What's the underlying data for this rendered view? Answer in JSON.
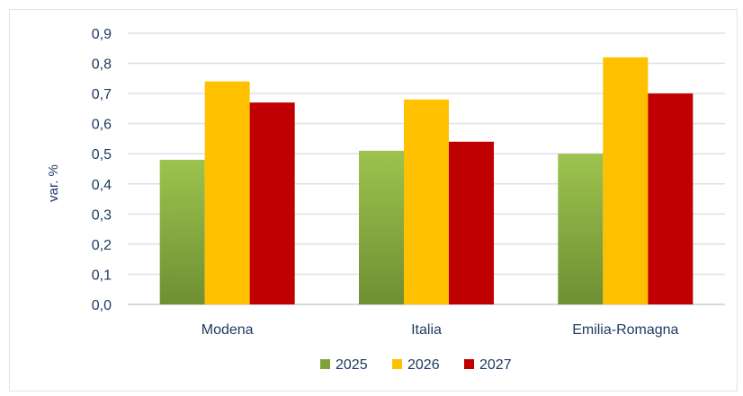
{
  "chart_data": {
    "type": "bar",
    "title": "",
    "xlabel": "",
    "ylabel": "var. %",
    "ylim": [
      0,
      0.9
    ],
    "y_ticks": [
      "0,0",
      "0,1",
      "0,2",
      "0,3",
      "0,4",
      "0,5",
      "0,6",
      "0,7",
      "0,8",
      "0,9"
    ],
    "grid": true,
    "legend_position": "bottom",
    "categories": [
      "Modena",
      "Italia",
      "Emilia-Romagna"
    ],
    "series": [
      {
        "name": "2025",
        "values": [
          0.48,
          0.51,
          0.5
        ],
        "color": "#7ea23a"
      },
      {
        "name": "2026",
        "values": [
          0.74,
          0.68,
          0.82
        ],
        "color": "#ffc000"
      },
      {
        "name": "2027",
        "values": [
          0.67,
          0.54,
          0.7
        ],
        "color": "#c00000"
      }
    ]
  }
}
